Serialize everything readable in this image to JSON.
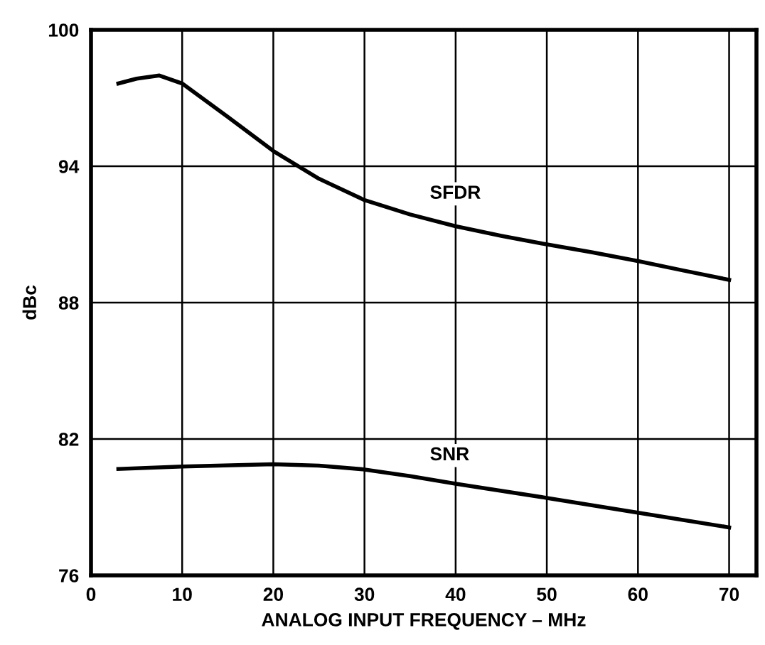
{
  "chart_data": {
    "type": "line",
    "xlabel": "ANALOG INPUT FREQUENCY – MHz",
    "ylabel": "dBc",
    "xlim": [
      0,
      73
    ],
    "xticks": [
      0,
      10,
      20,
      30,
      40,
      50,
      60,
      70
    ],
    "ylim": [
      76,
      100
    ],
    "yticks": [
      76,
      82,
      88,
      94,
      100
    ],
    "grid": true,
    "legend": false,
    "line_style": "solid",
    "series": [
      {
        "name": "SFDR",
        "color": "#000000",
        "x": [
          3,
          5,
          7.5,
          10,
          15,
          20,
          25,
          30,
          35,
          40,
          45,
          50,
          55,
          60,
          65,
          70
        ],
        "values": [
          97.64,
          97.85,
          97.99,
          97.64,
          96.17,
          94.67,
          93.45,
          92.51,
          91.88,
          91.36,
          90.94,
          90.56,
          90.21,
          89.83,
          89.41,
          89.0
        ]
      },
      {
        "name": "SNR",
        "color": "#000000",
        "x": [
          3,
          10,
          20,
          25,
          30,
          35,
          40,
          50,
          60,
          70
        ],
        "values": [
          80.68,
          80.79,
          80.89,
          80.83,
          80.66,
          80.37,
          80.03,
          79.41,
          78.76,
          78.11
        ]
      }
    ]
  }
}
